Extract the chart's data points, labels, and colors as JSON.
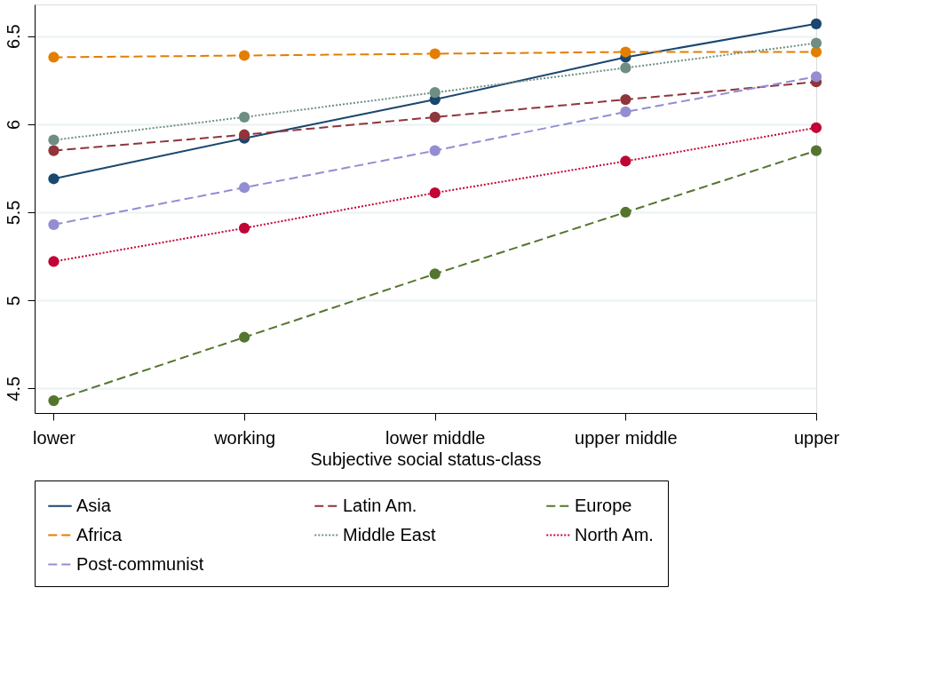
{
  "chart_data": {
    "type": "line",
    "xlabel": "Subjective social status-class",
    "categories": [
      "lower",
      "working",
      "lower middle",
      "upper middle",
      "upper"
    ],
    "ylim": [
      4.36,
      6.68
    ],
    "yticks": [
      4.5,
      5,
      5.5,
      6,
      6.5
    ],
    "grid": "y",
    "legend": "bottom",
    "marker": "circle",
    "series": [
      {
        "name": "Asia",
        "color": "#1a476f",
        "line_style": "solid",
        "values": [
          5.69,
          5.92,
          6.14,
          6.38,
          6.57
        ]
      },
      {
        "name": "Latin Am.",
        "color": "#90353b",
        "line_style": "dashed",
        "values": [
          5.85,
          5.94,
          6.04,
          6.14,
          6.24
        ]
      },
      {
        "name": "Europe",
        "color": "#55752f",
        "line_style": "dashed",
        "values": [
          4.43,
          4.79,
          5.15,
          5.5,
          5.85
        ]
      },
      {
        "name": "Africa",
        "color": "#e37e00",
        "line_style": "dashed",
        "values": [
          6.38,
          6.39,
          6.4,
          6.41,
          6.41
        ]
      },
      {
        "name": "Middle East",
        "color": "#6e8e84",
        "line_style": "dotted",
        "values": [
          5.91,
          6.04,
          6.18,
          6.32,
          6.46
        ]
      },
      {
        "name": "North Am.",
        "color": "#c10534",
        "line_style": "dotted",
        "values": [
          5.22,
          5.41,
          5.61,
          5.79,
          5.98
        ]
      },
      {
        "name": "Post-communist",
        "color": "#938dd2",
        "line_style": "dashed",
        "values": [
          5.43,
          5.64,
          5.85,
          6.07,
          6.27
        ]
      }
    ]
  }
}
